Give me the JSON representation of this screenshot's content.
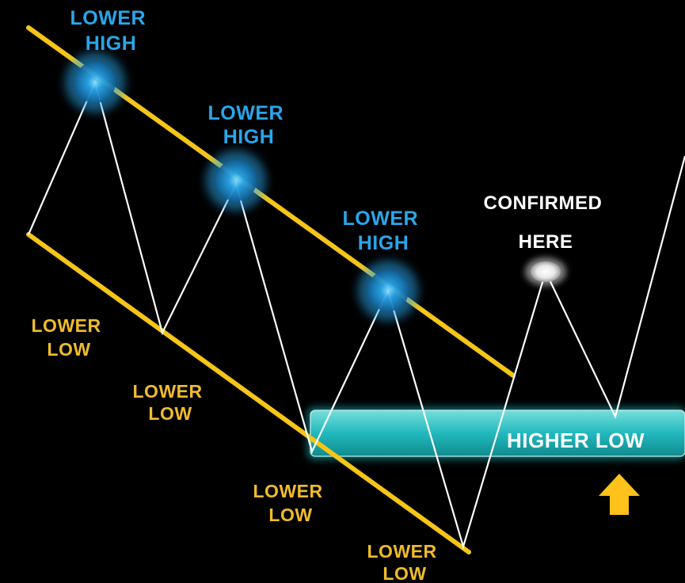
{
  "colors": {
    "background": "#000000",
    "trendline": "#f5c518",
    "price_line": "#ffffff",
    "lower_high": "#2aa6ea",
    "lower_low": "#f0bc2a",
    "confirmed": "#ffffff",
    "higher_low_zone": "#27c6c9",
    "arrow": "#ffc21a"
  },
  "lower_highs": [
    {
      "line1": "LOWER",
      "line2": "HIGH"
    },
    {
      "line1": "LOWER",
      "line2": "HIGH"
    },
    {
      "line1": "LOWER",
      "line2": "HIGH"
    }
  ],
  "lower_lows": [
    {
      "line1": "LOWER",
      "line2": "LOW"
    },
    {
      "line1": "LOWER",
      "line2": "LOW"
    },
    {
      "line1": "LOWER",
      "line2": "LOW"
    },
    {
      "line1": "LOWER",
      "line2": "LOW"
    }
  ],
  "confirmed": {
    "line1": "CONFIRMED",
    "line2": "HERE"
  },
  "higher_low": {
    "label": "HIGHER LOW"
  },
  "icons": {
    "up_arrow": "up-arrow-icon",
    "confirm_point": "confirm-point-icon"
  }
}
